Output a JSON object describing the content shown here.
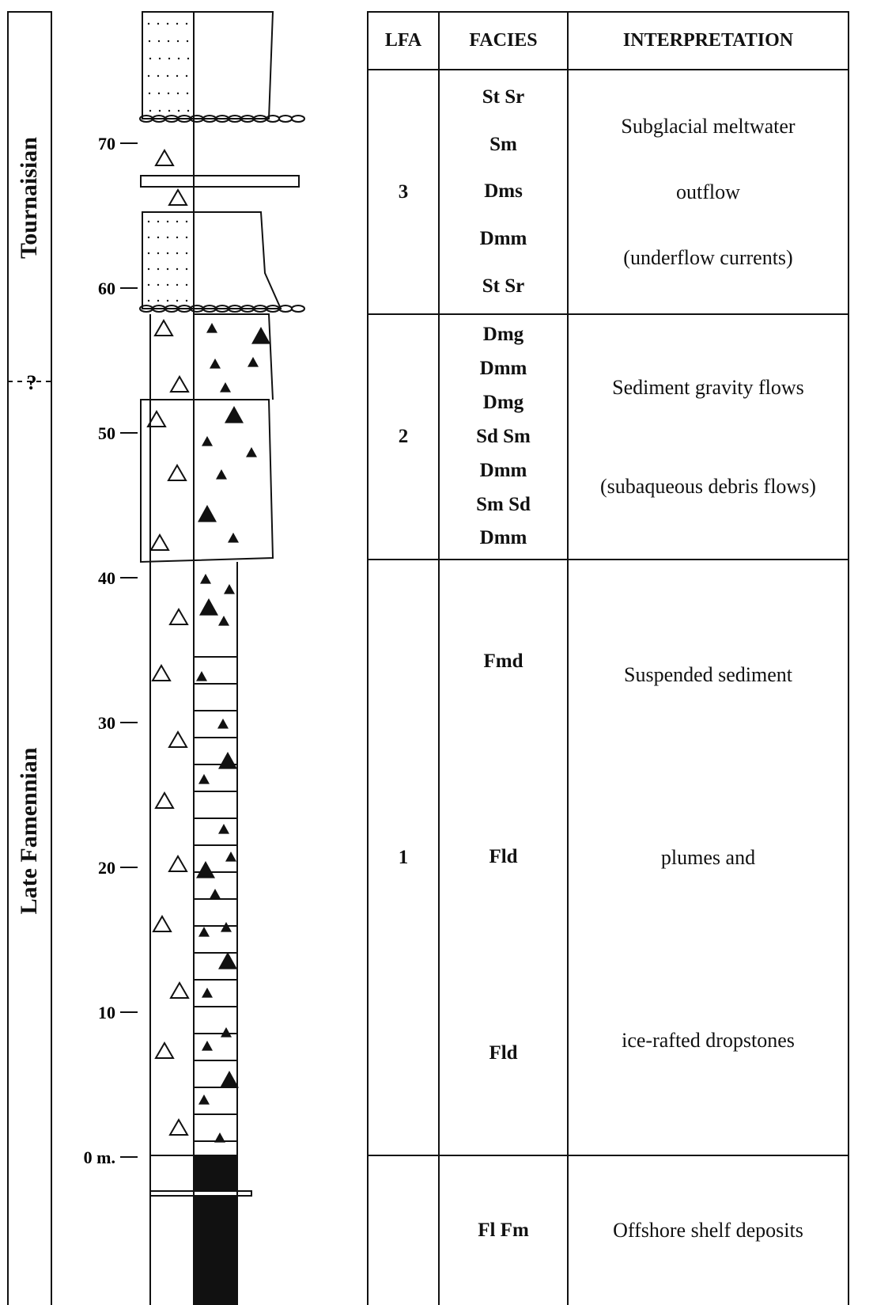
{
  "stages": [
    {
      "label": "Tournaisian"
    },
    {
      "label": "Late Famennian"
    }
  ],
  "boundary_mark": "?",
  "depth_scale": {
    "ticks": [
      {
        "value": 0,
        "label": "0 m."
      },
      10,
      20,
      30,
      40,
      50,
      60,
      70
    ]
  },
  "table": {
    "header": [
      "LFA",
      "FACIES",
      "INTERPRETATION"
    ],
    "rows": [
      {
        "lfa": "3",
        "facies": [
          "St Sr",
          "Sm",
          "Dms",
          "Dmm",
          "St Sr"
        ],
        "interpretation": [
          "Subglacial meltwater",
          "outflow",
          "(underflow currents)"
        ]
      },
      {
        "lfa": "2",
        "facies": [
          "Dmg",
          "Dmm",
          "Dmg",
          "Sd Sm",
          "Dmm",
          "Sm Sd",
          "Dmm"
        ],
        "interpretation": [
          "Sediment gravity flows",
          "(subaqueous debris flows)"
        ]
      },
      {
        "lfa": "1",
        "facies": [
          "Fmd",
          "Fld",
          "Fld"
        ],
        "interpretation": [
          "Suspended sediment",
          "plumes and",
          "ice-rafted dropstones"
        ]
      },
      {
        "facies": [
          "Fl Fm"
        ],
        "interpretation": [
          "Offshore shelf deposits"
        ]
      }
    ]
  }
}
